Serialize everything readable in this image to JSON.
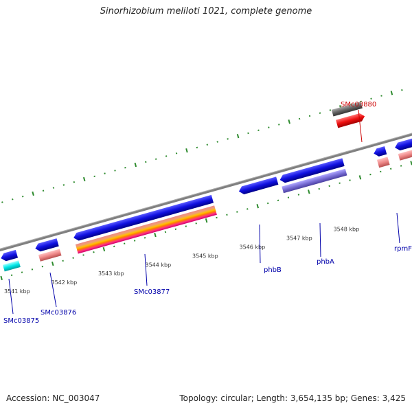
{
  "title": "Sinorhizobium meliloti 1021, complete genome",
  "footer": {
    "accession": "Accession: NC_003047",
    "summary": "Topology: circular; Length: 3,654,135 bp; Genes: 3,425"
  },
  "colors": {
    "backbone": "#808080",
    "tick_marks": "#2e8b2e",
    "label_blue": "#0000aa",
    "label_red": "#cc0000",
    "cds_blue": "#1010e0",
    "cds_pink": "#ee8888",
    "cds_cyan": "#00e8e8",
    "cds_red": "#ee1010",
    "cds_gray": "#666666",
    "cds_lavender": "#7a6fd6"
  },
  "scale_labels": [
    "3541 kbp",
    "3542 kbp",
    "3543 kbp",
    "3544 kbp",
    "3545 kbp",
    "3546 kbp",
    "3547 kbp",
    "3548 kbp"
  ],
  "gene_labels": [
    {
      "name": "SMc03875",
      "color": "blue"
    },
    {
      "name": "SMc03876",
      "color": "blue"
    },
    {
      "name": "SMc03877",
      "color": "blue"
    },
    {
      "name": "phbB",
      "color": "blue"
    },
    {
      "name": "phbA",
      "color": "blue"
    },
    {
      "name": "rpmF",
      "color": "blue"
    },
    {
      "name": "SMc03880",
      "color": "red"
    }
  ]
}
